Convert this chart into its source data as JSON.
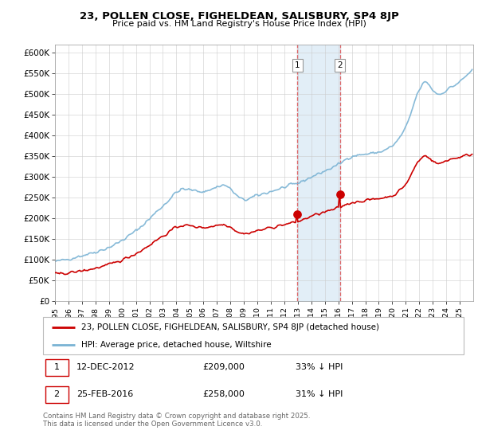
{
  "title": "23, POLLEN CLOSE, FIGHELDEAN, SALISBURY, SP4 8JP",
  "subtitle": "Price paid vs. HM Land Registry's House Price Index (HPI)",
  "hpi_color": "#7ab3d4",
  "property_color": "#cc0000",
  "marker1_price": 209000,
  "marker2_price": 258000,
  "shade_color": "#d6e8f5",
  "legend_property": "23, POLLEN CLOSE, FIGHELDEAN, SALISBURY, SP4 8JP (detached house)",
  "legend_hpi": "HPI: Average price, detached house, Wiltshire",
  "footer": "Contains HM Land Registry data © Crown copyright and database right 2025.\nThis data is licensed under the Open Government Licence v3.0.",
  "ytick_labels": [
    "£0",
    "£50K",
    "£100K",
    "£150K",
    "£200K",
    "£250K",
    "£300K",
    "£350K",
    "£400K",
    "£450K",
    "£500K",
    "£550K",
    "£600K"
  ],
  "start_year": 1995,
  "end_year": 2026,
  "marker1_year": 2012.96,
  "marker2_year": 2016.12
}
